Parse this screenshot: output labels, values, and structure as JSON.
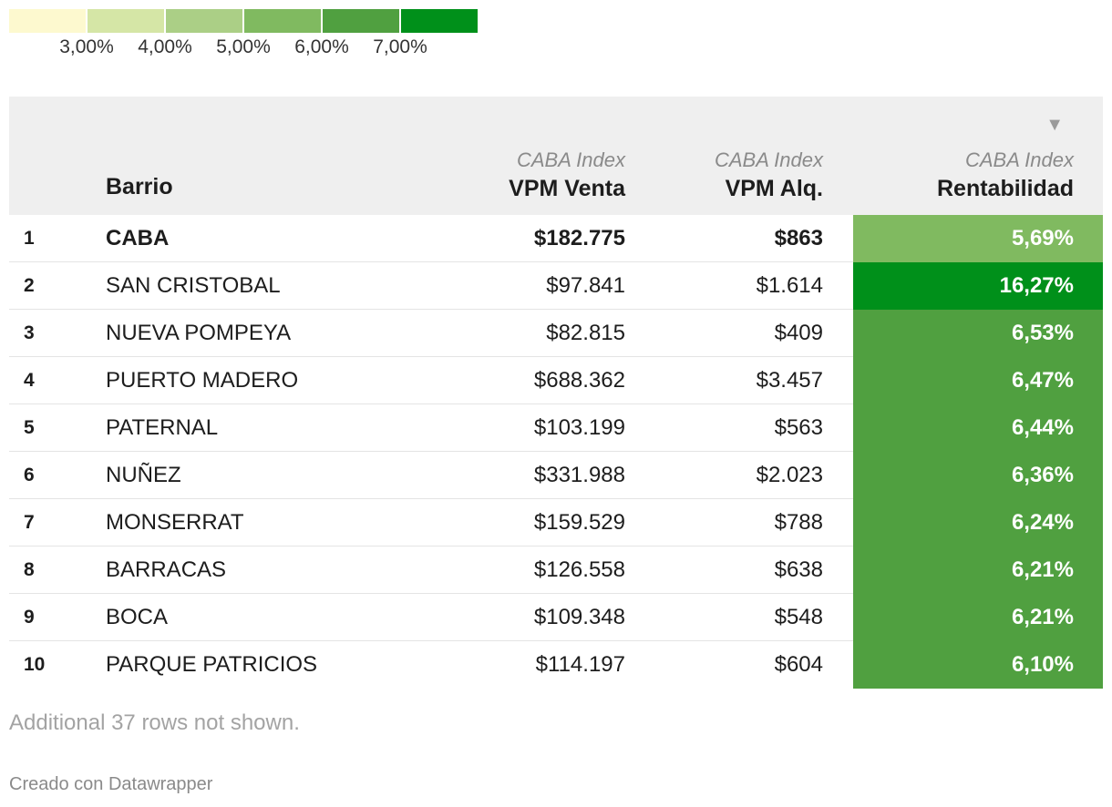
{
  "legend": {
    "colors": [
      "#fdf9cf",
      "#d5e6a6",
      "#abcf86",
      "#80ba60",
      "#50a040",
      "#00901a"
    ],
    "labels": [
      "3,00%",
      "4,00%",
      "5,00%",
      "6,00%",
      "7,00%"
    ]
  },
  "table": {
    "headers": {
      "barrio": "Barrio",
      "venta_sub": "CABA Index",
      "venta": "VPM Venta",
      "alq_sub": "CABA Index",
      "alq": "VPM Alq.",
      "rent_sub": "CABA Index",
      "rent": "Rentabilidad"
    },
    "sort_icon": "sort-descending-icon",
    "note": "Additional 37 rows not shown.",
    "credit": "Creado con Datawrapper"
  },
  "chart_data": {
    "type": "table",
    "columns": [
      "",
      "Barrio",
      "VPM Venta",
      "VPM Alq.",
      "Rentabilidad"
    ],
    "rows": [
      {
        "rank": "1",
        "barrio": "CABA",
        "venta": "$182.775",
        "alq": "$863",
        "rent": "5,69%",
        "rent_value": 5.69,
        "bold": true
      },
      {
        "rank": "2",
        "barrio": "SAN CRISTOBAL",
        "venta": "$97.841",
        "alq": "$1.614",
        "rent": "16,27%",
        "rent_value": 16.27
      },
      {
        "rank": "3",
        "barrio": "NUEVA POMPEYA",
        "venta": "$82.815",
        "alq": "$409",
        "rent": "6,53%",
        "rent_value": 6.53
      },
      {
        "rank": "4",
        "barrio": "PUERTO MADERO",
        "venta": "$688.362",
        "alq": "$3.457",
        "rent": "6,47%",
        "rent_value": 6.47
      },
      {
        "rank": "5",
        "barrio": "PATERNAL",
        "venta": "$103.199",
        "alq": "$563",
        "rent": "6,44%",
        "rent_value": 6.44
      },
      {
        "rank": "6",
        "barrio": "NUÑEZ",
        "venta": "$331.988",
        "alq": "$2.023",
        "rent": "6,36%",
        "rent_value": 6.36
      },
      {
        "rank": "7",
        "barrio": "MONSERRAT",
        "venta": "$159.529",
        "alq": "$788",
        "rent": "6,24%",
        "rent_value": 6.24
      },
      {
        "rank": "8",
        "barrio": "BARRACAS",
        "venta": "$126.558",
        "alq": "$638",
        "rent": "6,21%",
        "rent_value": 6.21
      },
      {
        "rank": "9",
        "barrio": "BOCA",
        "venta": "$109.348",
        "alq": "$548",
        "rent": "6,21%",
        "rent_value": 6.21
      },
      {
        "rank": "10",
        "barrio": "PARQUE PATRICIOS",
        "venta": "$114.197",
        "alq": "$604",
        "rent": "6,10%",
        "rent_value": 6.1
      }
    ]
  }
}
